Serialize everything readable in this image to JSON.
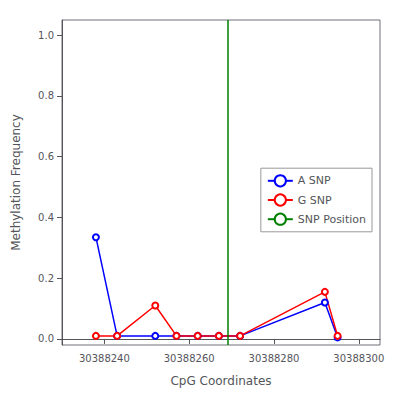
{
  "chart_data": {
    "type": "line",
    "xlabel": "CpG Coordinates",
    "ylabel": "Methylation Frequency",
    "x": [
      30388238,
      30388243,
      30388252,
      30388257,
      30388262,
      30388267,
      30388272,
      30388292,
      30388295
    ],
    "series": [
      {
        "name": "A SNP",
        "color": "blue",
        "marker": "circle",
        "values": [
          0.335,
          0.01,
          0.01,
          0.01,
          0.01,
          0.01,
          0.01,
          0.12,
          0.005
        ]
      },
      {
        "name": "G SNP",
        "color": "red",
        "marker": "circle",
        "values": [
          0.01,
          0.01,
          0.11,
          0.01,
          0.01,
          0.01,
          0.01,
          0.155,
          0.01
        ]
      },
      {
        "name": "SNP Position",
        "type": "vline",
        "color": "green",
        "x": 30388269
      }
    ],
    "xlim": [
      30388230,
      30388305
    ],
    "xticks": [
      30388240,
      30388260,
      30388280,
      30388300
    ],
    "ylim": [
      -0.02,
      1.05
    ],
    "yticks": [
      {
        "value": 0.0,
        "label": "0.0"
      },
      0.2,
      0.4,
      0.6,
      0.8,
      {
        "value": 1.0,
        "label": "1.0"
      }
    ],
    "grid": false,
    "legend": "right"
  }
}
